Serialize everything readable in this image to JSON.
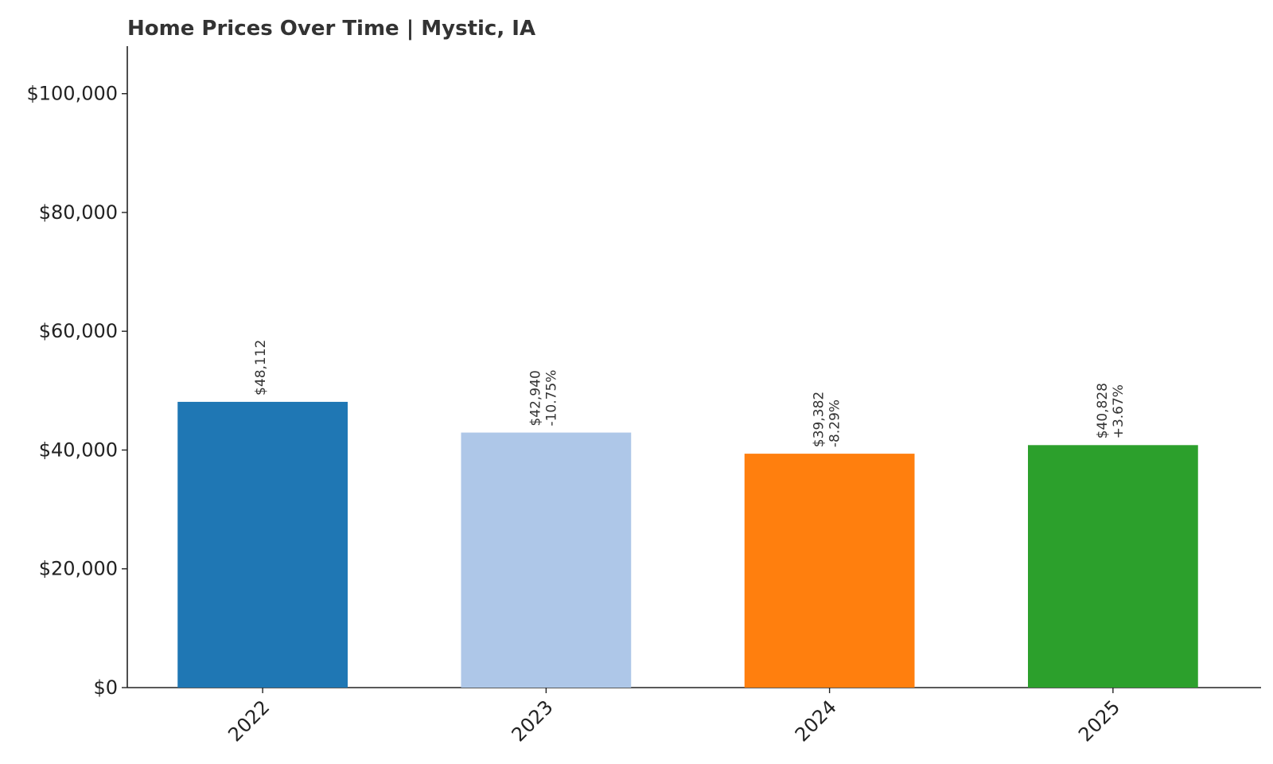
{
  "chart_data": {
    "type": "bar",
    "title": "Home Prices Over Time | Mystic, IA",
    "xlabel": "",
    "ylabel": "",
    "categories": [
      "2022",
      "2023",
      "2024",
      "2025"
    ],
    "values": [
      48112,
      42940,
      39382,
      40828
    ],
    "value_labels": [
      "$48,112",
      "$42,940",
      "$39,382",
      "$40,828"
    ],
    "change_labels": [
      "",
      "-10.75%",
      "-8.29%",
      "+3.67%"
    ],
    "bar_colors": [
      "#1f77b4",
      "#aec7e8",
      "#ff7f0e",
      "#2ca02c"
    ],
    "ylim": [
      0,
      108000
    ],
    "yticks": [
      0,
      20000,
      40000,
      60000,
      80000,
      100000
    ],
    "ytick_labels": [
      "$0",
      "$20,000",
      "$40,000",
      "$60,000",
      "$80,000",
      "$100,000"
    ],
    "grid": false,
    "legend": "none"
  }
}
